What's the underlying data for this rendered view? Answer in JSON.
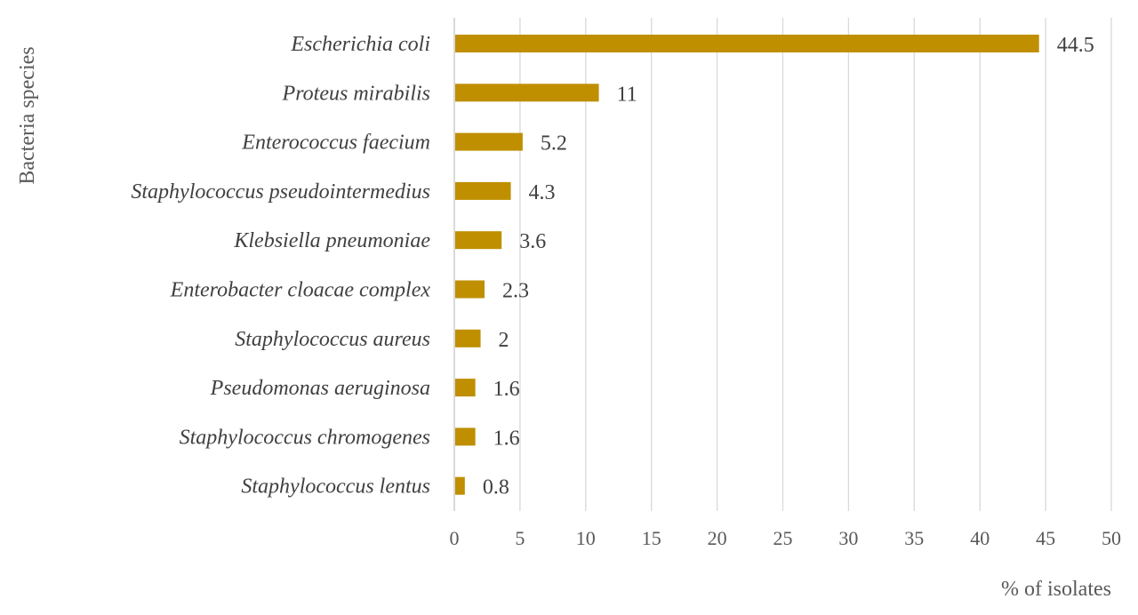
{
  "chart_data": {
    "type": "bar",
    "orientation": "horizontal",
    "title": "",
    "xlabel": "% of isolates",
    "ylabel": "Bacteria species",
    "xlim": [
      0,
      50
    ],
    "xticks": [
      "0",
      "5",
      "10",
      "15",
      "20",
      "25",
      "30",
      "35",
      "40",
      "45",
      "50"
    ],
    "grid": "vertical",
    "bar_color": "#BF8F00",
    "categories": [
      "Escherichia coli",
      "Proteus mirabilis",
      "Enterococcus faecium",
      "Staphylococcus pseudointermedius",
      "Klebsiella pneumoniae",
      "Enterobacter cloacae complex",
      "Staphylococcus aureus",
      "Pseudomonas aeruginosa",
      "Staphylococcus chromogenes",
      "Staphylococcus lentus"
    ],
    "values": [
      44.5,
      11,
      5.2,
      4.3,
      3.6,
      2.3,
      2,
      1.6,
      1.6,
      0.8
    ],
    "data_labels": [
      "44.5",
      "11",
      "5.2",
      "4.3",
      "3.6",
      "2.3",
      "2",
      "1.6",
      "1.6",
      "0.8"
    ]
  }
}
